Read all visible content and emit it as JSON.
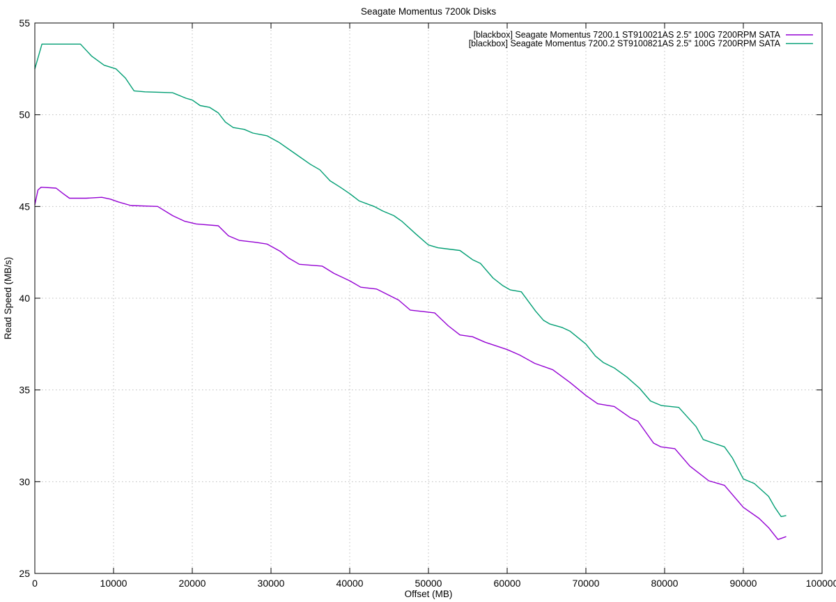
{
  "chart_data": {
    "type": "line",
    "title": "Seagate Momentus 7200k Disks",
    "xlabel": "Offset (MB)",
    "ylabel": "Read Speed (MB/s)",
    "xlim": [
      0,
      100000
    ],
    "ylim": [
      25,
      55
    ],
    "xticks": [
      0,
      10000,
      20000,
      30000,
      40000,
      50000,
      60000,
      70000,
      80000,
      90000,
      100000
    ],
    "yticks": [
      25,
      30,
      35,
      40,
      45,
      50,
      55
    ],
    "grid": true,
    "grid_style": "dotted",
    "grid_color": "#bdbdbd",
    "border_color": "#000000",
    "background_color": "#ffffff",
    "legend_position": "top-right-inside",
    "series": [
      {
        "label": "[blackbox] Seagate Momentus 7200.1 ST910021AS 2.5\" 100G 7200RPM SATA",
        "color": "#9400d3",
        "points": [
          [
            0,
            45.1
          ],
          [
            400,
            45.9
          ],
          [
            800,
            46.05
          ],
          [
            2700,
            46.0
          ],
          [
            3600,
            45.7
          ],
          [
            4400,
            45.45
          ],
          [
            6500,
            45.45
          ],
          [
            8500,
            45.5
          ],
          [
            9600,
            45.4
          ],
          [
            10600,
            45.25
          ],
          [
            12200,
            45.05
          ],
          [
            15600,
            45.0
          ],
          [
            17500,
            44.5
          ],
          [
            19000,
            44.2
          ],
          [
            20500,
            44.05
          ],
          [
            23300,
            43.95
          ],
          [
            24600,
            43.4
          ],
          [
            26000,
            43.15
          ],
          [
            28000,
            43.05
          ],
          [
            29500,
            42.95
          ],
          [
            31200,
            42.55
          ],
          [
            32200,
            42.2
          ],
          [
            33600,
            41.85
          ],
          [
            36500,
            41.75
          ],
          [
            38000,
            41.35
          ],
          [
            40000,
            40.95
          ],
          [
            41400,
            40.6
          ],
          [
            43400,
            40.5
          ],
          [
            46200,
            39.9
          ],
          [
            47700,
            39.35
          ],
          [
            50800,
            39.2
          ],
          [
            52500,
            38.5
          ],
          [
            54000,
            38.0
          ],
          [
            55600,
            37.9
          ],
          [
            57200,
            37.6
          ],
          [
            60000,
            37.2
          ],
          [
            61600,
            36.9
          ],
          [
            63500,
            36.45
          ],
          [
            65800,
            36.1
          ],
          [
            68000,
            35.4
          ],
          [
            70000,
            34.7
          ],
          [
            71500,
            34.25
          ],
          [
            73600,
            34.1
          ],
          [
            75600,
            33.5
          ],
          [
            76600,
            33.3
          ],
          [
            78600,
            32.1
          ],
          [
            79500,
            31.9
          ],
          [
            81300,
            31.8
          ],
          [
            83200,
            30.85
          ],
          [
            85600,
            30.05
          ],
          [
            87600,
            29.8
          ],
          [
            90000,
            28.6
          ],
          [
            92000,
            28.0
          ],
          [
            93200,
            27.5
          ],
          [
            94400,
            26.85
          ],
          [
            95400,
            27.0
          ]
        ]
      },
      {
        "label": "[blackbox] Seagate Momentus 7200.2 ST9100821AS 2.5\" 100G 7200RPM SATA",
        "color": "#009e73",
        "points": [
          [
            0,
            52.5
          ],
          [
            900,
            53.85
          ],
          [
            5800,
            53.85
          ],
          [
            7200,
            53.2
          ],
          [
            8800,
            52.7
          ],
          [
            10300,
            52.5
          ],
          [
            11500,
            52.0
          ],
          [
            12600,
            51.3
          ],
          [
            14000,
            51.25
          ],
          [
            17500,
            51.2
          ],
          [
            19200,
            50.9
          ],
          [
            20000,
            50.8
          ],
          [
            21000,
            50.5
          ],
          [
            22200,
            50.4
          ],
          [
            23300,
            50.1
          ],
          [
            24200,
            49.6
          ],
          [
            25200,
            49.3
          ],
          [
            26600,
            49.2
          ],
          [
            27700,
            49.0
          ],
          [
            29500,
            48.85
          ],
          [
            31000,
            48.5
          ],
          [
            33000,
            47.9
          ],
          [
            35000,
            47.3
          ],
          [
            36200,
            47.0
          ],
          [
            37500,
            46.4
          ],
          [
            38800,
            46.05
          ],
          [
            40000,
            45.7
          ],
          [
            41200,
            45.3
          ],
          [
            43100,
            45.0
          ],
          [
            44200,
            44.75
          ],
          [
            45600,
            44.5
          ],
          [
            46600,
            44.2
          ],
          [
            48400,
            43.5
          ],
          [
            50000,
            42.9
          ],
          [
            51200,
            42.75
          ],
          [
            54000,
            42.6
          ],
          [
            55600,
            42.1
          ],
          [
            56600,
            41.9
          ],
          [
            58200,
            41.1
          ],
          [
            59400,
            40.7
          ],
          [
            60400,
            40.45
          ],
          [
            61800,
            40.35
          ],
          [
            63600,
            39.3
          ],
          [
            64600,
            38.8
          ],
          [
            65400,
            38.6
          ],
          [
            67000,
            38.4
          ],
          [
            68000,
            38.2
          ],
          [
            70000,
            37.5
          ],
          [
            71200,
            36.85
          ],
          [
            72200,
            36.5
          ],
          [
            73600,
            36.2
          ],
          [
            75200,
            35.7
          ],
          [
            76800,
            35.1
          ],
          [
            78200,
            34.4
          ],
          [
            79600,
            34.15
          ],
          [
            81800,
            34.05
          ],
          [
            84000,
            33.0
          ],
          [
            84900,
            32.3
          ],
          [
            86200,
            32.1
          ],
          [
            87600,
            31.9
          ],
          [
            88600,
            31.3
          ],
          [
            90000,
            30.15
          ],
          [
            91400,
            29.9
          ],
          [
            93200,
            29.2
          ],
          [
            94000,
            28.6
          ],
          [
            94800,
            28.1
          ],
          [
            95400,
            28.15
          ]
        ]
      }
    ]
  }
}
